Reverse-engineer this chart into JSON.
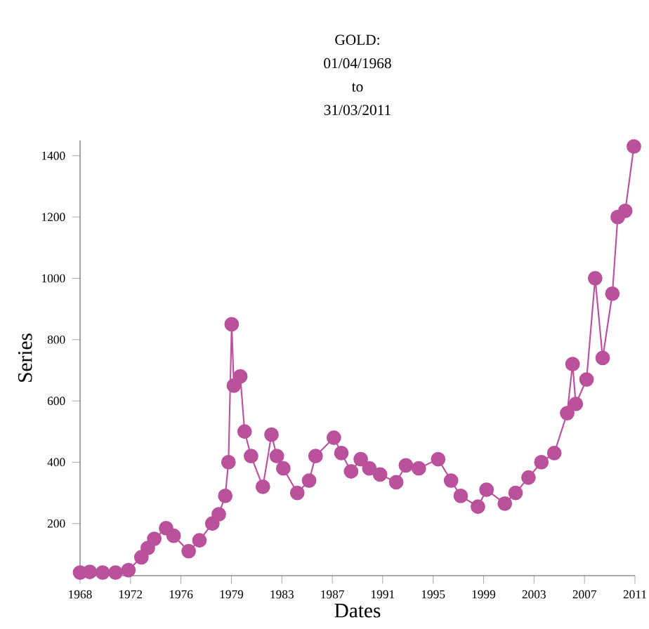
{
  "chart_data": {
    "type": "line",
    "title": "GOLD: 01/04/1968 to 31/03/2011",
    "xlabel": "Dates",
    "ylabel": "Series",
    "color": "#b9519c",
    "marker": "circle",
    "line_style": "solid",
    "grid": false,
    "x": [
      "1968-04",
      "1969-01",
      "1970-01",
      "1971-01",
      "1972-01",
      "1973-01",
      "1973-07",
      "1974-01",
      "1974-12",
      "1975-07",
      "1976-09",
      "1977-07",
      "1978-07",
      "1979-01",
      "1979-07",
      "1979-10",
      "1980-01",
      "1980-03",
      "1980-09",
      "1981-01",
      "1981-07",
      "1982-06",
      "1983-02",
      "1983-07",
      "1984-01",
      "1985-02",
      "1986-01",
      "1986-07",
      "1987-12",
      "1988-07",
      "1989-04",
      "1990-01",
      "1990-09",
      "1991-07",
      "1992-10",
      "1993-07",
      "1994-07",
      "1996-01",
      "1997-01",
      "1997-10",
      "1999-02",
      "1999-10",
      "2001-03",
      "2002-01",
      "2003-01",
      "2004-01",
      "2005-01",
      "2006-01",
      "2006-06",
      "2006-09",
      "2007-07",
      "2008-03",
      "2008-10",
      "2009-07",
      "2009-12",
      "2010-07",
      "2011-03"
    ],
    "values": [
      40,
      42,
      40,
      40,
      48,
      90,
      120,
      150,
      185,
      160,
      110,
      145,
      200,
      230,
      290,
      400,
      850,
      650,
      680,
      500,
      420,
      320,
      490,
      420,
      380,
      300,
      340,
      420,
      480,
      430,
      370,
      410,
      380,
      360,
      335,
      390,
      380,
      410,
      340,
      290,
      255,
      310,
      265,
      300,
      350,
      400,
      430,
      560,
      720,
      590,
      670,
      1000,
      740,
      950,
      1200,
      1220,
      1430
    ],
    "xlim": [
      "1968-04-01",
      "2011-04-01"
    ],
    "ylim": [
      30,
      1450
    ],
    "xticks": [
      {
        "value": "1968-04-01",
        "label": "1968"
      },
      {
        "value": "1972-02-27",
        "label": "1972"
      },
      {
        "value": "1976-01-25",
        "label": "1976"
      },
      {
        "value": "1979-12-24",
        "label": "1979"
      },
      {
        "value": "1983-11-21",
        "label": "1983"
      },
      {
        "value": "1987-10-19",
        "label": "1987"
      },
      {
        "value": "1991-09-13",
        "label": "1991"
      },
      {
        "value": "1995-08-11",
        "label": "1995"
      },
      {
        "value": "1999-07-08",
        "label": "1999"
      },
      {
        "value": "2003-06-05",
        "label": "2003"
      },
      {
        "value": "2007-05-04",
        "label": "2007"
      },
      {
        "value": "2011-04-01",
        "label": "2011"
      }
    ],
    "yticks": [
      200,
      400,
      600,
      800,
      1000,
      1200,
      1400
    ]
  }
}
